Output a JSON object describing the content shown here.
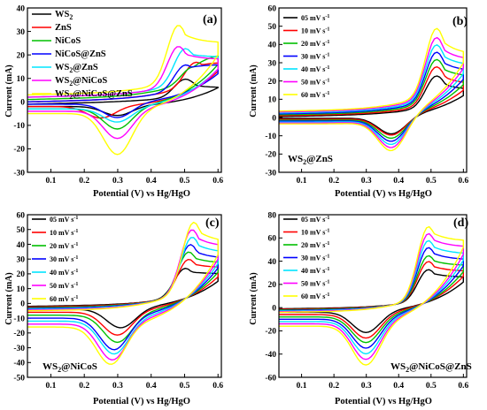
{
  "chart_data": [
    {
      "type": "line",
      "panel_label": "(a)",
      "ylabel": "Current (mA)",
      "xlabel": "Potential (V) vs Hg/HgO",
      "xlim": [
        0.03,
        0.61
      ],
      "ylim": [
        -30,
        40
      ],
      "xticks": [
        "0.1",
        "0.2",
        "0.3",
        "0.4",
        "0.5",
        "0.6"
      ],
      "yticks": [
        "-30",
        "-20",
        "-10",
        "0",
        "10",
        "20",
        "30",
        "40"
      ],
      "legend_position": "top-left",
      "series": [
        {
          "name": "WS2",
          "color": "#000000",
          "anodic_peak": [
            0.5,
            8
          ],
          "cathodic_peak": [
            0.3,
            -6
          ],
          "start": [
            0.03,
            -1
          ],
          "start_low": [
            0.03,
            -2
          ],
          "end": [
            0.6,
            6
          ],
          "end_low": [
            0.6,
            6
          ]
        },
        {
          "name": "ZnS",
          "color": "#ff0000",
          "anodic_peak": [
            0.53,
            15
          ],
          "cathodic_peak": [
            0.25,
            -7
          ],
          "start": [
            0.03,
            0
          ],
          "start_low": [
            0.03,
            -2
          ],
          "end": [
            0.6,
            17
          ],
          "end_low": [
            0.6,
            13
          ]
        },
        {
          "name": "NiCoS",
          "color": "#00c000",
          "anodic_peak": [
            0.52,
            13
          ],
          "cathodic_peak": [
            0.3,
            -12
          ],
          "start": [
            0.03,
            1
          ],
          "start_low": [
            0.03,
            -3
          ],
          "end": [
            0.6,
            21
          ],
          "end_low": [
            0.6,
            16
          ]
        },
        {
          "name": "NiCoS@ZnS",
          "color": "#0000ff",
          "anodic_peak": [
            0.5,
            14
          ],
          "cathodic_peak": [
            0.3,
            -7
          ],
          "start": [
            0.03,
            0
          ],
          "start_low": [
            0.03,
            -1
          ],
          "end": [
            0.6,
            16
          ],
          "end_low": [
            0.6,
            12
          ]
        },
        {
          "name": "WS2@ZnS",
          "color": "#00e5ff",
          "anodic_peak": [
            0.5,
            21
          ],
          "cathodic_peak": [
            0.3,
            -9
          ],
          "start": [
            0.03,
            2
          ],
          "start_low": [
            0.03,
            -3
          ],
          "end": [
            0.6,
            19
          ],
          "end_low": [
            0.6,
            14
          ]
        },
        {
          "name": "WS2@NiCoS",
          "color": "#ff00ff",
          "anodic_peak": [
            0.48,
            22
          ],
          "cathodic_peak": [
            0.3,
            -16
          ],
          "start": [
            0.03,
            2
          ],
          "start_low": [
            0.03,
            -4
          ],
          "end": [
            0.6,
            18
          ],
          "end_low": [
            0.6,
            14
          ]
        },
        {
          "name": "WS2@NiCoS@ZnS",
          "color": "#ffff00",
          "anodic_peak": [
            0.48,
            31
          ],
          "cathodic_peak": [
            0.3,
            -23
          ],
          "start": [
            0.03,
            3
          ],
          "start_low": [
            0.03,
            -5
          ],
          "end": [
            0.6,
            25
          ],
          "end_low": [
            0.6,
            20
          ]
        }
      ]
    },
    {
      "type": "line",
      "panel_label": "(b)",
      "sample_label": "WS2@ZnS",
      "ylabel": "Current (mA)",
      "xlabel": "Potential (V) vs Hg/HgO",
      "xlim": [
        0.03,
        0.61
      ],
      "ylim": [
        -30,
        60
      ],
      "xticks": [
        "0.1",
        "0.2",
        "0.3",
        "0.4",
        "0.5",
        "0.6"
      ],
      "yticks": [
        "-30",
        "-20",
        "-10",
        "0",
        "10",
        "20",
        "30",
        "40",
        "50",
        "60"
      ],
      "legend_position": "top-left",
      "series": [
        {
          "name": "05 mV s-1",
          "color": "#000000",
          "anodic_peak": [
            0.515,
            21
          ],
          "cathodic_peak": [
            0.38,
            -10
          ],
          "start": [
            0.03,
            0.5
          ],
          "start_low": [
            0.03,
            -0.5
          ],
          "end": [
            0.6,
            15
          ],
          "end_low": [
            0.6,
            12
          ]
        },
        {
          "name": "10 mV s-1",
          "color": "#ff0000",
          "anodic_peak": [
            0.515,
            26
          ],
          "cathodic_peak": [
            0.38,
            -11
          ],
          "start": [
            0.03,
            1
          ],
          "start_low": [
            0.03,
            -1
          ],
          "end": [
            0.6,
            18
          ],
          "end_low": [
            0.6,
            15
          ]
        },
        {
          "name": "20 mV s-1",
          "color": "#00c000",
          "anodic_peak": [
            0.515,
            30
          ],
          "cathodic_peak": [
            0.38,
            -13
          ],
          "start": [
            0.03,
            1.5
          ],
          "start_low": [
            0.03,
            -1.5
          ],
          "end": [
            0.6,
            22
          ],
          "end_low": [
            0.6,
            18
          ]
        },
        {
          "name": "30 mV s-1",
          "color": "#0000ff",
          "anodic_peak": [
            0.515,
            34
          ],
          "cathodic_peak": [
            0.38,
            -15
          ],
          "start": [
            0.03,
            2
          ],
          "start_low": [
            0.03,
            -2
          ],
          "end": [
            0.6,
            25
          ],
          "end_low": [
            0.6,
            21
          ]
        },
        {
          "name": "40 mV s-1",
          "color": "#00e5ff",
          "anodic_peak": [
            0.515,
            38
          ],
          "cathodic_peak": [
            0.38,
            -17
          ],
          "start": [
            0.03,
            2.5
          ],
          "start_low": [
            0.03,
            -2.5
          ],
          "end": [
            0.6,
            28
          ],
          "end_low": [
            0.6,
            24
          ]
        },
        {
          "name": "50 mV s-1",
          "color": "#ff00ff",
          "anodic_peak": [
            0.515,
            42
          ],
          "cathodic_peak": [
            0.38,
            -19
          ],
          "start": [
            0.03,
            3
          ],
          "start_low": [
            0.03,
            -3
          ],
          "end": [
            0.6,
            31
          ],
          "end_low": [
            0.6,
            27
          ]
        },
        {
          "name": "60 mV s-1",
          "color": "#ffff00",
          "anodic_peak": [
            0.515,
            47
          ],
          "cathodic_peak": [
            0.38,
            -21
          ],
          "start": [
            0.03,
            3.5
          ],
          "start_low": [
            0.03,
            -3.5
          ],
          "end": [
            0.6,
            34
          ],
          "end_low": [
            0.6,
            30
          ]
        }
      ]
    },
    {
      "type": "line",
      "panel_label": "(c)",
      "sample_label": "WS2@NiCoS",
      "ylabel": "Current (mA)",
      "xlabel": "Potential (V) vs Hg/HgO",
      "xlim": [
        0.03,
        0.61
      ],
      "ylim": [
        -50,
        60
      ],
      "xticks": [
        "0.1",
        "0.2",
        "0.3",
        "0.4",
        "0.5",
        "0.6"
      ],
      "yticks": [
        "-50",
        "-40",
        "-30",
        "-20",
        "-10",
        "0",
        "10",
        "20",
        "30",
        "40",
        "50",
        "60"
      ],
      "legend_position": "top-left",
      "series": [
        {
          "name": "05 mV s-1",
          "color": "#000000",
          "anodic_peak": [
            0.5,
            22
          ],
          "cathodic_peak": [
            0.31,
            -17
          ],
          "start": [
            0.03,
            -2
          ],
          "start_low": [
            0.03,
            -4
          ],
          "end": [
            0.6,
            20
          ],
          "end_low": [
            0.6,
            15
          ]
        },
        {
          "name": "10 mV s-1",
          "color": "#ff0000",
          "anodic_peak": [
            0.51,
            28
          ],
          "cathodic_peak": [
            0.3,
            -22
          ],
          "start": [
            0.03,
            -2.5
          ],
          "start_low": [
            0.03,
            -6
          ],
          "end": [
            0.6,
            24
          ],
          "end_low": [
            0.6,
            18
          ]
        },
        {
          "name": "20 mV s-1",
          "color": "#00c000",
          "anodic_peak": [
            0.51,
            33
          ],
          "cathodic_peak": [
            0.3,
            -27
          ],
          "start": [
            0.03,
            -3
          ],
          "start_low": [
            0.03,
            -8
          ],
          "end": [
            0.6,
            27
          ],
          "end_low": [
            0.6,
            21
          ]
        },
        {
          "name": "30 mV s-1",
          "color": "#0000ff",
          "anodic_peak": [
            0.515,
            38
          ],
          "cathodic_peak": [
            0.29,
            -32
          ],
          "start": [
            0.03,
            -3.5
          ],
          "start_low": [
            0.03,
            -10
          ],
          "end": [
            0.6,
            30
          ],
          "end_low": [
            0.6,
            24
          ]
        },
        {
          "name": "40 mV s-1",
          "color": "#00e5ff",
          "anodic_peak": [
            0.52,
            43
          ],
          "cathodic_peak": [
            0.29,
            -35
          ],
          "start": [
            0.03,
            -4
          ],
          "start_low": [
            0.03,
            -12
          ],
          "end": [
            0.6,
            34
          ],
          "end_low": [
            0.6,
            27
          ]
        },
        {
          "name": "50 mV s-1",
          "color": "#ff00ff",
          "anodic_peak": [
            0.52,
            48
          ],
          "cathodic_peak": [
            0.285,
            -39
          ],
          "start": [
            0.03,
            -4.5
          ],
          "start_low": [
            0.03,
            -14
          ],
          "end": [
            0.6,
            38
          ],
          "end_low": [
            0.6,
            30
          ]
        },
        {
          "name": "60 mV s-1",
          "color": "#ffff00",
          "anodic_peak": [
            0.525,
            53
          ],
          "cathodic_peak": [
            0.28,
            -42
          ],
          "start": [
            0.03,
            -5
          ],
          "start_low": [
            0.03,
            -16
          ],
          "end": [
            0.6,
            41
          ],
          "end_low": [
            0.6,
            33
          ]
        }
      ]
    },
    {
      "type": "line",
      "panel_label": "(d)",
      "sample_label": "WS2@NiCoS@ZnS",
      "ylabel": "Current (mA)",
      "xlabel": "Potential (V) vs Hg/HgO",
      "xlim": [
        0.03,
        0.61
      ],
      "ylim": [
        -60,
        80
      ],
      "xticks": [
        "0.1",
        "0.2",
        "0.3",
        "0.4",
        "0.5",
        "0.6"
      ],
      "yticks": [
        "-60",
        "-40",
        "-20",
        "0",
        "20",
        "40",
        "60",
        "80"
      ],
      "legend_position": "top-left",
      "series": [
        {
          "name": "05 mV s-1",
          "color": "#000000",
          "anodic_peak": [
            0.49,
            31
          ],
          "cathodic_peak": [
            0.3,
            -22
          ],
          "start": [
            0.03,
            -1
          ],
          "start_low": [
            0.03,
            -4
          ],
          "end": [
            0.6,
            26
          ],
          "end_low": [
            0.6,
            22
          ]
        },
        {
          "name": "10 mV s-1",
          "color": "#ff0000",
          "anodic_peak": [
            0.49,
            38
          ],
          "cathodic_peak": [
            0.3,
            -27
          ],
          "start": [
            0.03,
            -1.5
          ],
          "start_low": [
            0.03,
            -6
          ],
          "end": [
            0.6,
            31
          ],
          "end_low": [
            0.6,
            27
          ]
        },
        {
          "name": "20 mV s-1",
          "color": "#00c000",
          "anodic_peak": [
            0.49,
            43
          ],
          "cathodic_peak": [
            0.3,
            -31
          ],
          "start": [
            0.03,
            -2
          ],
          "start_low": [
            0.03,
            -8
          ],
          "end": [
            0.6,
            36
          ],
          "end_low": [
            0.6,
            31
          ]
        },
        {
          "name": "30 mV s-1",
          "color": "#0000ff",
          "anodic_peak": [
            0.49,
            50
          ],
          "cathodic_peak": [
            0.3,
            -36
          ],
          "start": [
            0.03,
            -2.5
          ],
          "start_low": [
            0.03,
            -10
          ],
          "end": [
            0.6,
            41
          ],
          "end_low": [
            0.6,
            36
          ]
        },
        {
          "name": "40 mV s-1",
          "color": "#00e5ff",
          "anodic_peak": [
            0.49,
            56
          ],
          "cathodic_peak": [
            0.3,
            -41
          ],
          "start": [
            0.03,
            -3
          ],
          "start_low": [
            0.03,
            -12
          ],
          "end": [
            0.6,
            46
          ],
          "end_low": [
            0.6,
            41
          ]
        },
        {
          "name": "50 mV s-1",
          "color": "#ff00ff",
          "anodic_peak": [
            0.49,
            62
          ],
          "cathodic_peak": [
            0.3,
            -46
          ],
          "start": [
            0.03,
            -3.5
          ],
          "start_low": [
            0.03,
            -14
          ],
          "end": [
            0.6,
            52
          ],
          "end_low": [
            0.6,
            46
          ]
        },
        {
          "name": "60 mV s-1",
          "color": "#ffff00",
          "anodic_peak": [
            0.49,
            68
          ],
          "cathodic_peak": [
            0.3,
            -51
          ],
          "start": [
            0.03,
            -4
          ],
          "start_low": [
            0.03,
            -16
          ],
          "end": [
            0.6,
            57
          ],
          "end_low": [
            0.6,
            52
          ]
        }
      ]
    }
  ]
}
